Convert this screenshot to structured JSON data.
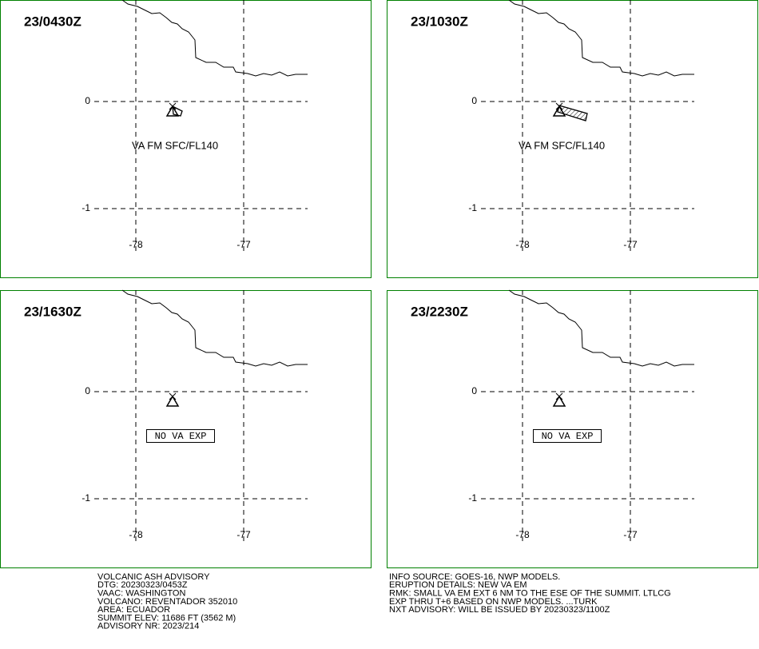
{
  "panels": [
    {
      "time": "23/0430Z",
      "annotation": "VA FM SFC/FL140"
    },
    {
      "time": "23/1030Z",
      "annotation": "VA FM SFC/FL140"
    },
    {
      "time": "23/1630Z",
      "annotation": "NO VA EXP"
    },
    {
      "time": "23/2230Z",
      "annotation": "NO VA EXP"
    }
  ],
  "lat_labels": [
    "0",
    "-1"
  ],
  "lon_labels": [
    "-78",
    "-77"
  ],
  "advisory_left": [
    "VOLCANIC ASH ADVISORY",
    "DTG: 20230323/0453Z",
    "VAAC: WASHINGTON",
    "VOLCANO: REVENTADOR 352010",
    "AREA: ECUADOR",
    "SUMMIT ELEV: 11686 FT (3562 M)",
    "ADVISORY NR: 2023/214"
  ],
  "advisory_right": [
    "INFO SOURCE: GOES-16, NWP MODELS.",
    "ERUPTION DETAILS: NEW VA EM",
    "RMK: SMALL VA EM EXT 6 NM TO THE ESE OF THE SUMMIT. LTLCG",
    "EXP THRU T+6 BASED ON NWP MODELS. ...TURK",
    "NXT ADVISORY: WILL BE ISSUED BY 20230323/1100Z"
  ]
}
